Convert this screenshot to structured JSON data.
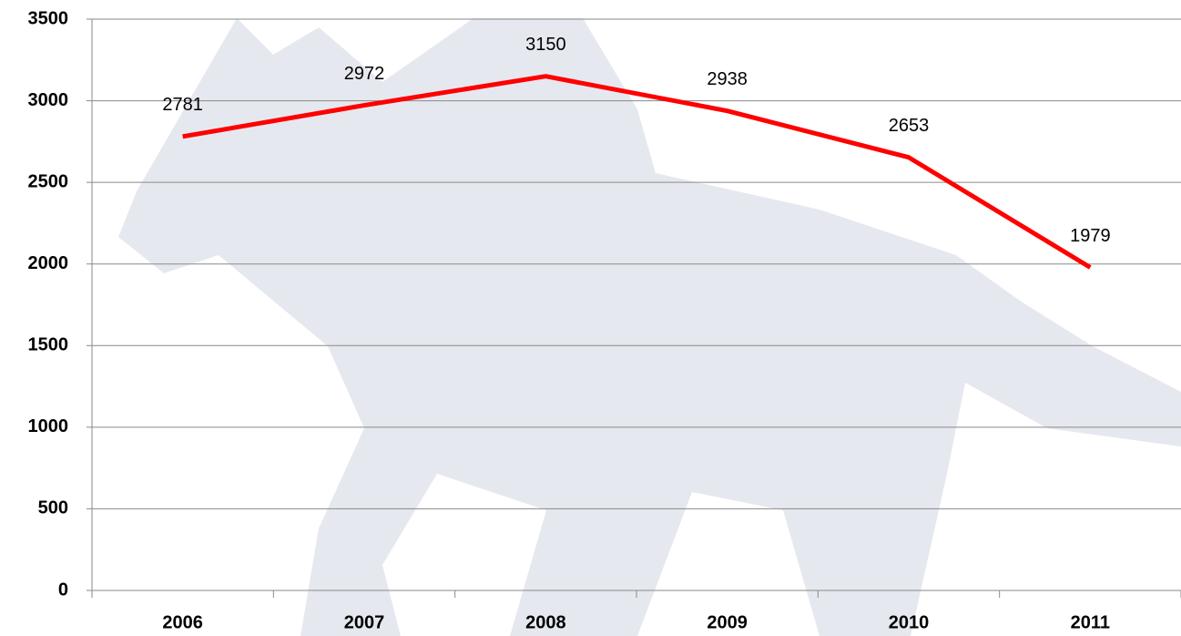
{
  "chart_data": {
    "type": "line",
    "categories": [
      "2006",
      "2007",
      "2008",
      "2009",
      "2010",
      "2011"
    ],
    "series": [
      {
        "color": "#ff0000",
        "values": [
          2781,
          2972,
          3150,
          2938,
          2653,
          1979
        ]
      }
    ],
    "ylim": [
      0,
      3500
    ],
    "yticks": [
      0,
      500,
      1000,
      1500,
      2000,
      2500,
      3000,
      3500
    ],
    "grid": true
  }
}
